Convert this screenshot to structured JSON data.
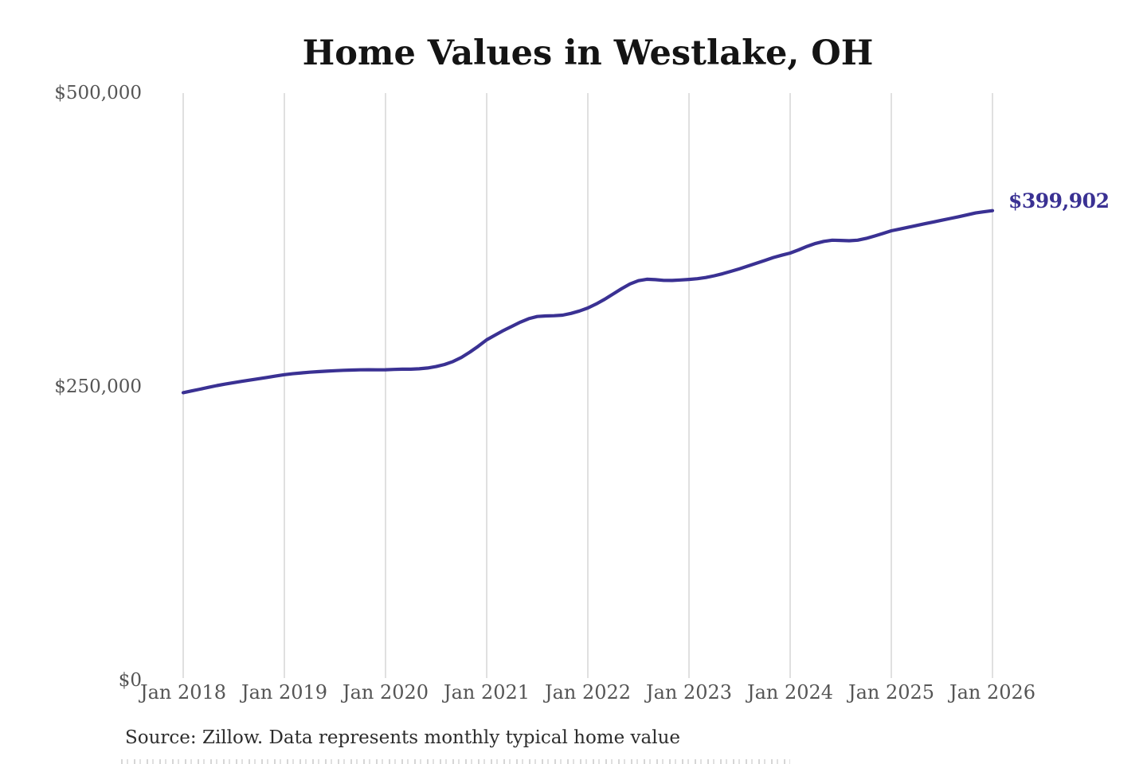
{
  "page": {
    "background": "#ffffff"
  },
  "chart": {
    "title": "Home Values in Westlake, OH",
    "latest_value_label": "$399,902",
    "source": "Source: Zillow. Data represents monthly typical home value",
    "colors": {
      "line": "#3a3193",
      "annotation": "#3a3193",
      "grid": "#cccccc",
      "axis_text": "#555555",
      "title_text": "#141414",
      "source_text": "#2d2d2d"
    }
  },
  "chart_data": {
    "type": "line",
    "title": "Home Values in Westlake, OH",
    "x_unit": "month",
    "x_start": "Jan 2018",
    "x_end": "Jan 2026",
    "x_tick_labels": [
      "Jan 2018",
      "Jan 2019",
      "Jan 2020",
      "Jan 2021",
      "Jan 2022",
      "Jan 2023",
      "Jan 2024",
      "Jan 2025",
      "Jan 2026"
    ],
    "y_ticks": [
      {
        "value": 0,
        "label": "$0"
      },
      {
        "value": 250000,
        "label": "$250,000"
      },
      {
        "value": 500000,
        "label": "$500,000"
      }
    ],
    "ylim": [
      0,
      500000
    ],
    "grid": "vertical-only",
    "legend": "none",
    "annotation": {
      "text": "$399,902",
      "position": "end-of-line"
    },
    "series": [
      {
        "name": "Monthly typical home value",
        "values": [
          245000,
          246500,
          248000,
          249500,
          251000,
          252300,
          253500,
          254700,
          255800,
          256900,
          258000,
          259200,
          260300,
          261100,
          261800,
          262400,
          262900,
          263300,
          263700,
          264000,
          264200,
          264400,
          264500,
          264400,
          264500,
          264800,
          265000,
          265000,
          265300,
          266000,
          267200,
          269000,
          271500,
          275000,
          279500,
          284500,
          290000,
          294000,
          298000,
          301500,
          305000,
          308000,
          309800,
          310300,
          310500,
          311000,
          312500,
          314500,
          317100,
          320500,
          324500,
          329000,
          333500,
          337500,
          340300,
          341500,
          341200,
          340600,
          340500,
          340900,
          341400,
          342000,
          343000,
          344500,
          346300,
          348300,
          350500,
          352800,
          355200,
          357600,
          360000,
          362000,
          363800,
          366500,
          369500,
          372000,
          373800,
          374800,
          374600,
          374300,
          374800,
          376300,
          378300,
          380500,
          382800,
          384300,
          385800,
          387300,
          388800,
          390300,
          391800,
          393300,
          394800,
          396400,
          398000,
          399000,
          399902
        ]
      }
    ]
  }
}
